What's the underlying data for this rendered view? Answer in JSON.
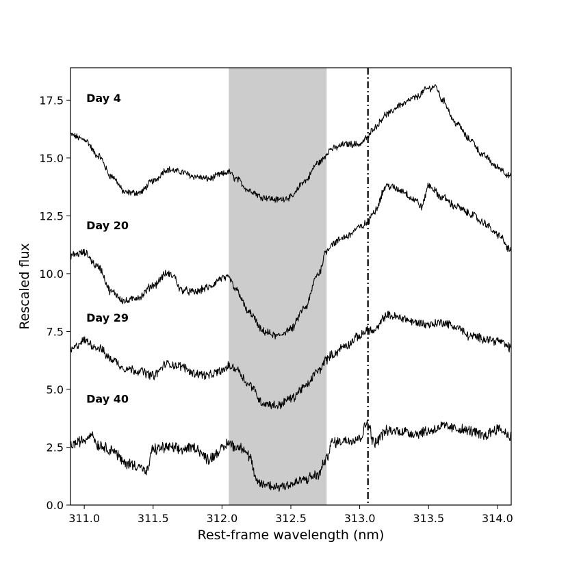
{
  "chart_data": {
    "type": "line",
    "xlabel": "Rest-frame wavelength (nm)",
    "ylabel": "Rescaled flux",
    "xlim": [
      310.9,
      314.1
    ],
    "ylim": [
      0.0,
      18.9
    ],
    "x_ticks": [
      "311.0",
      "311.5",
      "312.0",
      "312.5",
      "313.0",
      "313.5",
      "314.0"
    ],
    "x_tick_values": [
      311.0,
      311.5,
      312.0,
      312.5,
      313.0,
      313.5,
      314.0
    ],
    "y_ticks": [
      "0.0",
      "2.5",
      "5.0",
      "7.5",
      "10.0",
      "12.5",
      "15.0",
      "17.5"
    ],
    "y_tick_values": [
      0.0,
      2.5,
      5.0,
      7.5,
      10.0,
      12.5,
      15.0,
      17.5
    ],
    "shaded_region": {
      "x0": 312.05,
      "x1": 312.76,
      "color": "#cccccc"
    },
    "vertical_line": {
      "x": 313.06,
      "style": "dash-dot",
      "color": "#000000"
    },
    "line_color": "#000000",
    "grid": false,
    "series": [
      {
        "label": "Day 4",
        "label_pos": [
          311.0,
          17.6
        ],
        "noise": 0.12,
        "x": [
          310.9,
          311.0,
          311.1,
          311.2,
          311.3,
          311.4,
          311.5,
          311.6,
          311.7,
          311.8,
          311.9,
          312.0,
          312.05,
          312.1,
          312.2,
          312.3,
          312.4,
          312.5,
          312.6,
          312.7,
          312.8,
          312.9,
          313.0,
          313.06,
          313.1,
          313.2,
          313.3,
          313.4,
          313.5,
          313.55,
          313.6,
          313.7,
          313.8,
          313.9,
          314.0,
          314.1
        ],
        "y": [
          16.0,
          15.8,
          15.1,
          14.2,
          13.5,
          13.5,
          14.0,
          14.5,
          14.4,
          14.2,
          14.1,
          14.3,
          14.4,
          14.1,
          13.6,
          13.3,
          13.2,
          13.3,
          14.0,
          14.8,
          15.4,
          15.6,
          15.6,
          15.9,
          16.3,
          16.9,
          17.3,
          17.6,
          18.0,
          18.1,
          17.5,
          16.5,
          15.8,
          15.1,
          14.6,
          14.2
        ]
      },
      {
        "label": "Day 20",
        "label_pos": [
          311.0,
          12.1
        ],
        "noise": 0.14,
        "x": [
          310.9,
          311.0,
          311.1,
          311.2,
          311.3,
          311.4,
          311.5,
          311.6,
          311.65,
          311.7,
          311.8,
          311.9,
          312.0,
          312.05,
          312.1,
          312.2,
          312.3,
          312.4,
          312.5,
          312.6,
          312.7,
          312.76,
          312.8,
          312.9,
          313.0,
          313.06,
          313.1,
          313.2,
          313.3,
          313.4,
          313.45,
          313.5,
          313.6,
          313.7,
          313.8,
          313.9,
          314.0,
          314.1
        ],
        "y": [
          10.8,
          10.9,
          10.3,
          9.2,
          8.8,
          9.0,
          9.5,
          10.0,
          9.9,
          9.3,
          9.2,
          9.4,
          9.8,
          9.8,
          9.3,
          8.3,
          7.5,
          7.3,
          7.6,
          8.5,
          10.0,
          11.0,
          11.3,
          11.6,
          12.0,
          12.2,
          12.7,
          13.8,
          13.6,
          13.2,
          12.9,
          13.8,
          13.3,
          12.9,
          12.6,
          12.2,
          11.7,
          11.0
        ]
      },
      {
        "label": "Day 29",
        "label_pos": [
          311.0,
          8.1
        ],
        "noise": 0.16,
        "x": [
          310.9,
          311.0,
          311.1,
          311.2,
          311.3,
          311.4,
          311.5,
          311.6,
          311.7,
          311.8,
          311.9,
          312.0,
          312.05,
          312.1,
          312.2,
          312.3,
          312.4,
          312.5,
          312.6,
          312.7,
          312.76,
          312.8,
          312.9,
          313.0,
          313.06,
          313.1,
          313.2,
          313.3,
          313.4,
          313.5,
          313.6,
          313.7,
          313.8,
          313.9,
          314.0,
          314.1
        ],
        "y": [
          6.7,
          7.1,
          6.8,
          6.3,
          5.9,
          5.8,
          5.6,
          6.1,
          6.0,
          5.7,
          5.6,
          5.8,
          6.0,
          5.9,
          5.2,
          4.4,
          4.3,
          4.6,
          5.1,
          5.8,
          6.3,
          6.5,
          6.9,
          7.3,
          7.6,
          7.5,
          8.2,
          8.1,
          7.9,
          7.8,
          7.9,
          7.7,
          7.3,
          7.2,
          7.1,
          6.8
        ]
      },
      {
        "label": "Day 40",
        "label_pos": [
          311.0,
          4.6
        ],
        "noise": 0.2,
        "x": [
          310.9,
          311.0,
          311.05,
          311.1,
          311.2,
          311.3,
          311.4,
          311.45,
          311.5,
          311.6,
          311.7,
          311.8,
          311.9,
          312.0,
          312.05,
          312.1,
          312.15,
          312.2,
          312.25,
          312.3,
          312.4,
          312.5,
          312.6,
          312.7,
          312.75,
          312.8,
          312.9,
          313.0,
          313.06,
          313.1,
          313.2,
          313.3,
          313.4,
          313.5,
          313.6,
          313.7,
          313.8,
          313.9,
          314.0,
          314.1
        ],
        "y": [
          2.6,
          2.8,
          3.1,
          2.6,
          2.4,
          1.8,
          1.7,
          1.4,
          2.4,
          2.5,
          2.4,
          2.5,
          2.0,
          2.4,
          2.7,
          2.5,
          2.5,
          2.1,
          1.0,
          0.9,
          0.8,
          0.9,
          1.1,
          1.3,
          1.9,
          2.7,
          2.8,
          2.9,
          3.6,
          2.7,
          3.2,
          3.2,
          3.1,
          3.2,
          3.4,
          3.3,
          3.2,
          3.0,
          3.3,
          3.0
        ]
      }
    ]
  }
}
